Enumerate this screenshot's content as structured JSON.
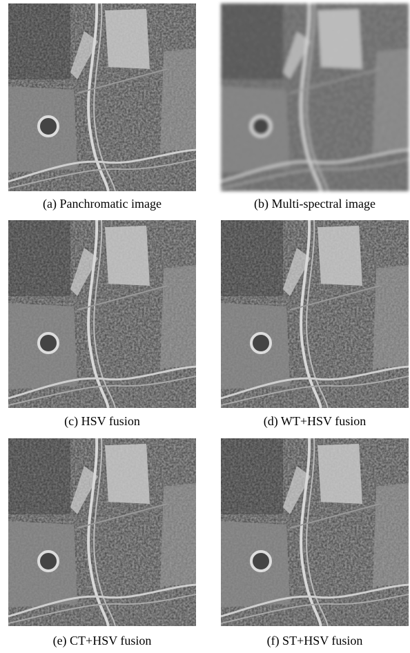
{
  "figure": {
    "panels": [
      {
        "caption": "(a) Panchromatic image"
      },
      {
        "caption": "(b) Multi-spectral image"
      },
      {
        "caption": "(c) HSV fusion"
      },
      {
        "caption": "(d) WT+HSV fusion"
      },
      {
        "caption": "(e) CT+HSV fusion"
      },
      {
        "caption": "(f) ST+HSV fusion"
      }
    ]
  }
}
